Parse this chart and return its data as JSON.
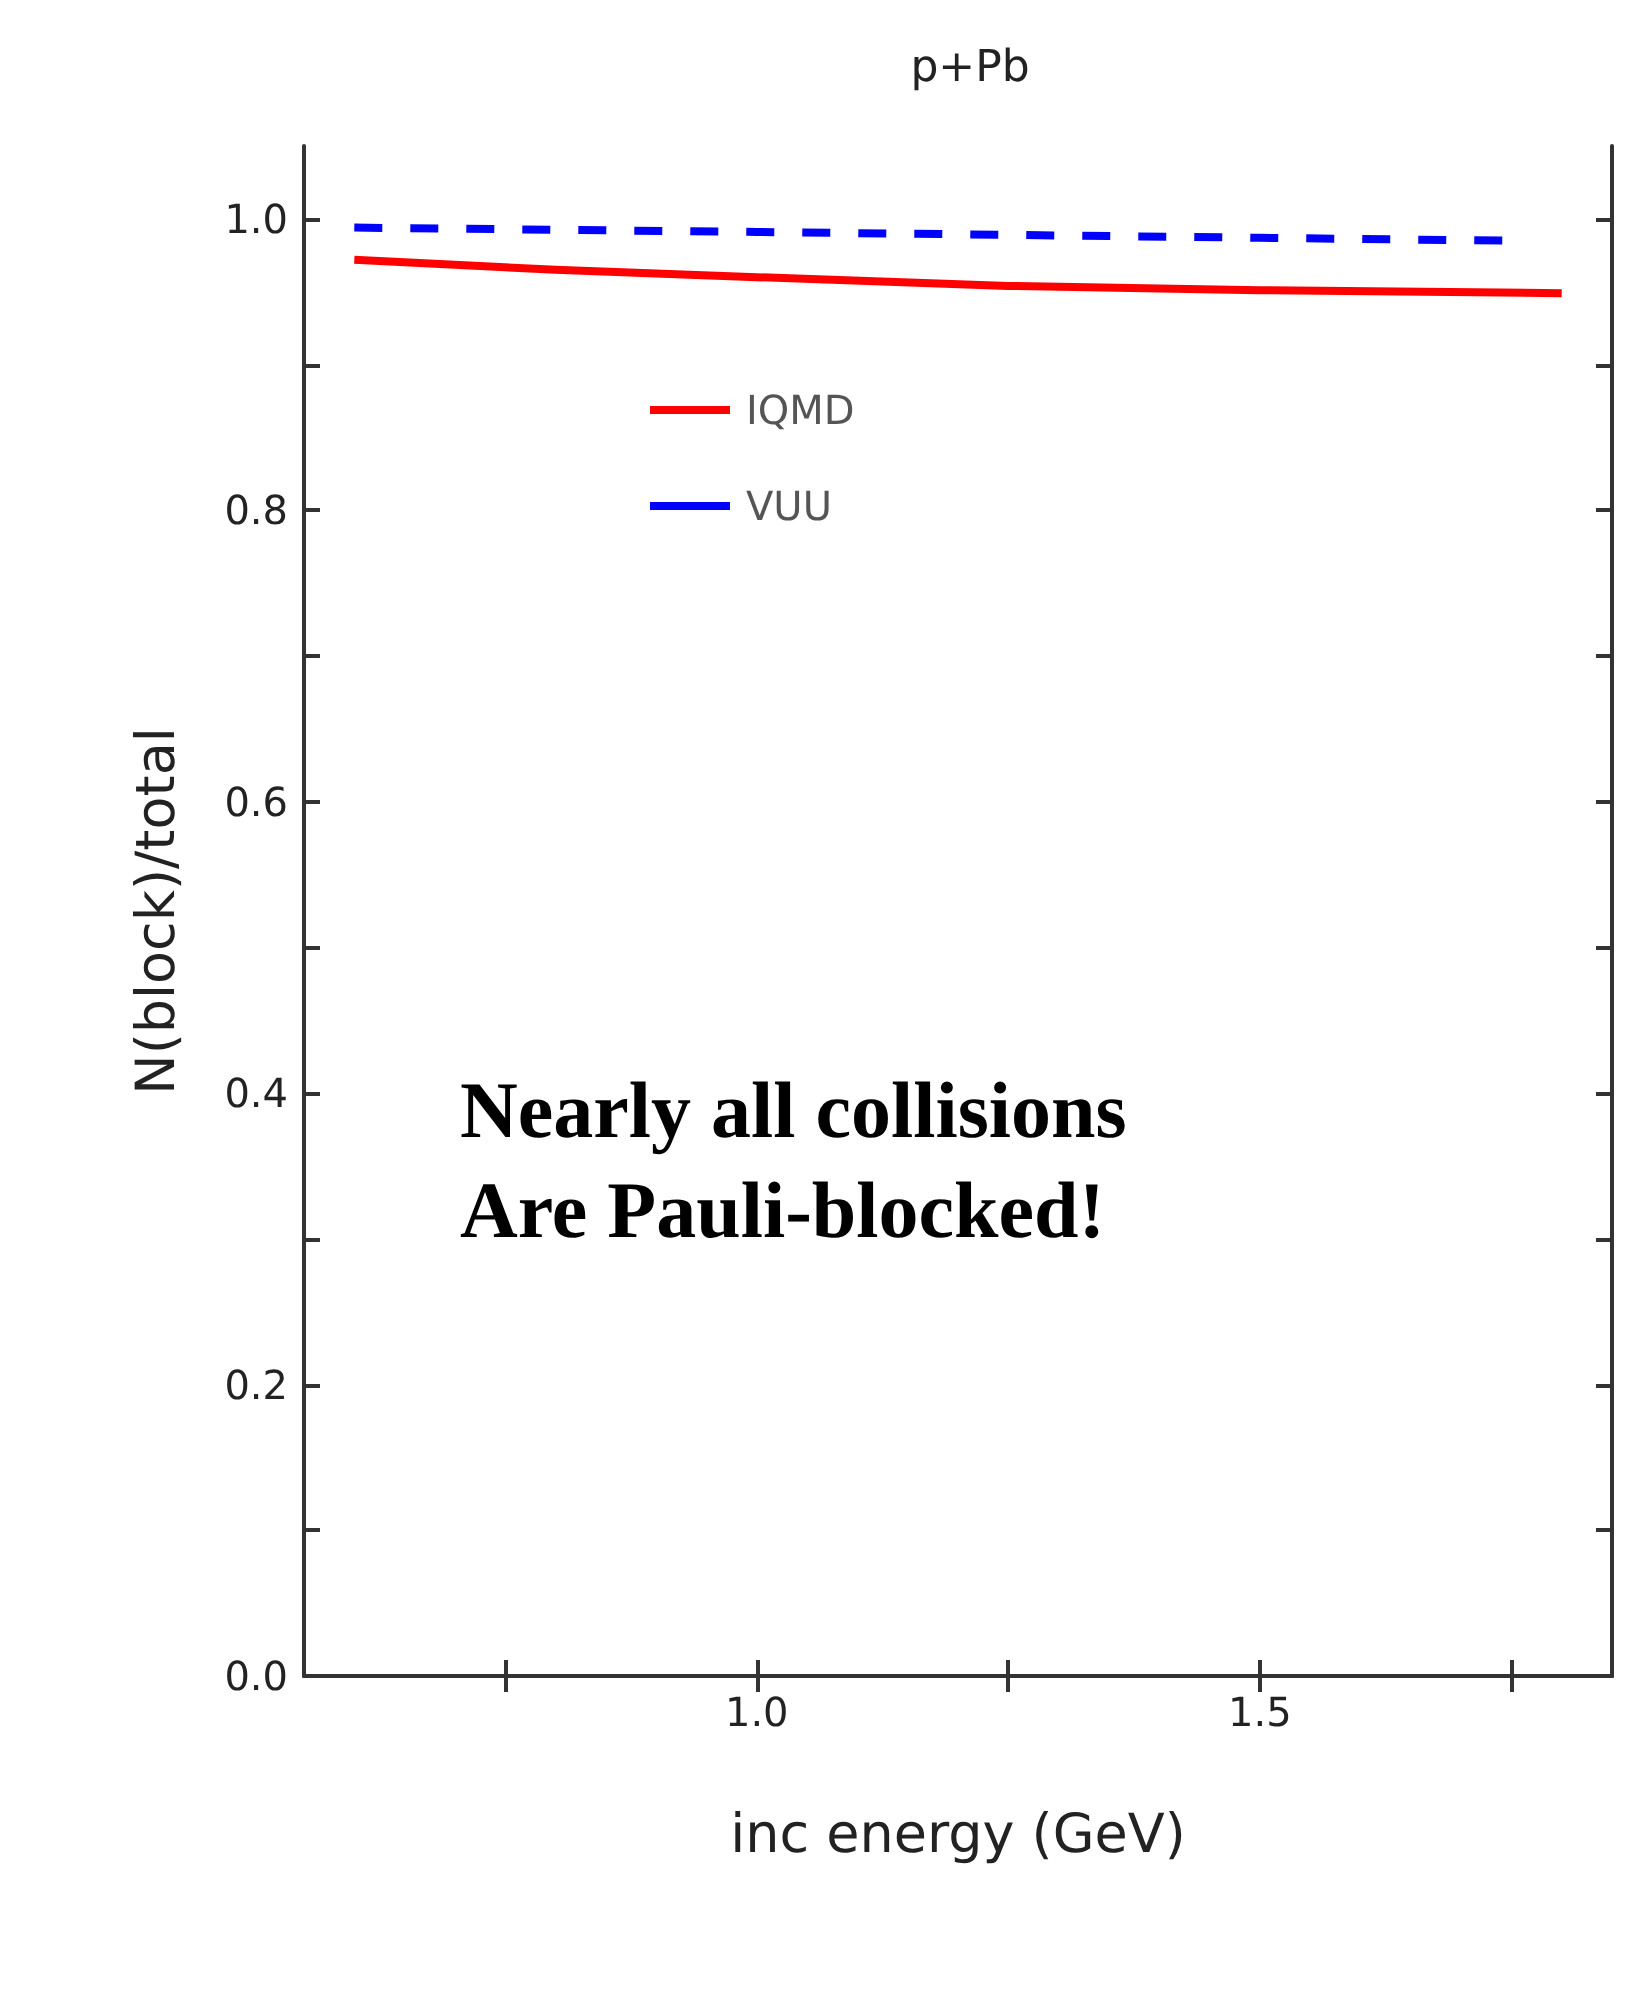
{
  "chart_data": {
    "type": "line",
    "title": "p+Pb",
    "xlabel": "inc energy (GeV)",
    "ylabel": "N(block)/total",
    "annotations": [
      "Nearly all collisions\nAre Pauli-blocked!"
    ],
    "xlim": [
      0.55,
      1.85
    ],
    "xticks": [
      {
        "value": 0.75,
        "label": null
      },
      {
        "value": 1.0,
        "label": "1.0"
      },
      {
        "value": 1.25,
        "label": null
      },
      1.5,
      {
        "value": 1.75,
        "label": null
      }
    ],
    "ylim": [
      0,
      1.05
    ],
    "yticks": [
      {
        "value": 0,
        "label": "0.0"
      },
      {
        "value": 0.1,
        "label": null
      },
      0.2,
      {
        "value": 0.3,
        "label": null
      },
      0.4,
      {
        "value": 0.5,
        "label": null
      },
      0.6,
      {
        "value": 0.7,
        "label": null
      },
      0.8,
      {
        "value": 0.9,
        "label": null
      },
      {
        "value": 1.0,
        "label": "1.0"
      }
    ],
    "grid": false,
    "legend": "top left",
    "marker": "none",
    "series": [
      {
        "name": "IQMD",
        "color": "#ff0000",
        "line_style": "solid",
        "x": [
          0.6,
          0.8,
          1.0,
          1.25,
          1.5,
          1.8
        ],
        "values": [
          0.972,
          0.965,
          0.96,
          0.954,
          0.951,
          0.949
        ]
      },
      {
        "name": "VUU",
        "color": "#0000ff",
        "line_style": "dashed",
        "x": [
          0.6,
          1.0,
          1.5,
          1.75
        ],
        "values": [
          0.994,
          0.991,
          0.987,
          0.985
        ]
      }
    ]
  }
}
